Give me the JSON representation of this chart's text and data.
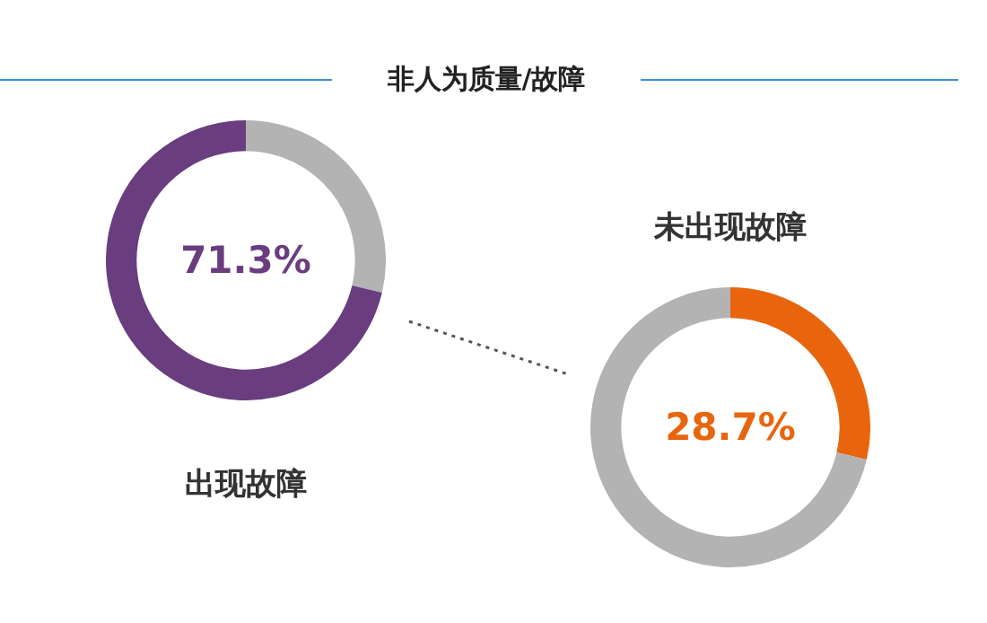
{
  "chart_data": [
    {
      "type": "donut",
      "title": "非人为质量/故障",
      "categories": [
        null,
        "出现故障"
      ],
      "values": [
        28.7,
        71.3
      ],
      "colors": [
        "#b3b3b3",
        "#6a3d7f"
      ],
      "value_labels": [
        null,
        "71.3%"
      ]
    },
    {
      "type": "donut",
      "categories": [
        "未出现故障",
        null
      ],
      "values": [
        28.7,
        71.3
      ],
      "colors": [
        "#e8650e",
        "#b3b3b3"
      ],
      "value_labels": [
        "28.7%",
        null
      ]
    }
  ]
}
